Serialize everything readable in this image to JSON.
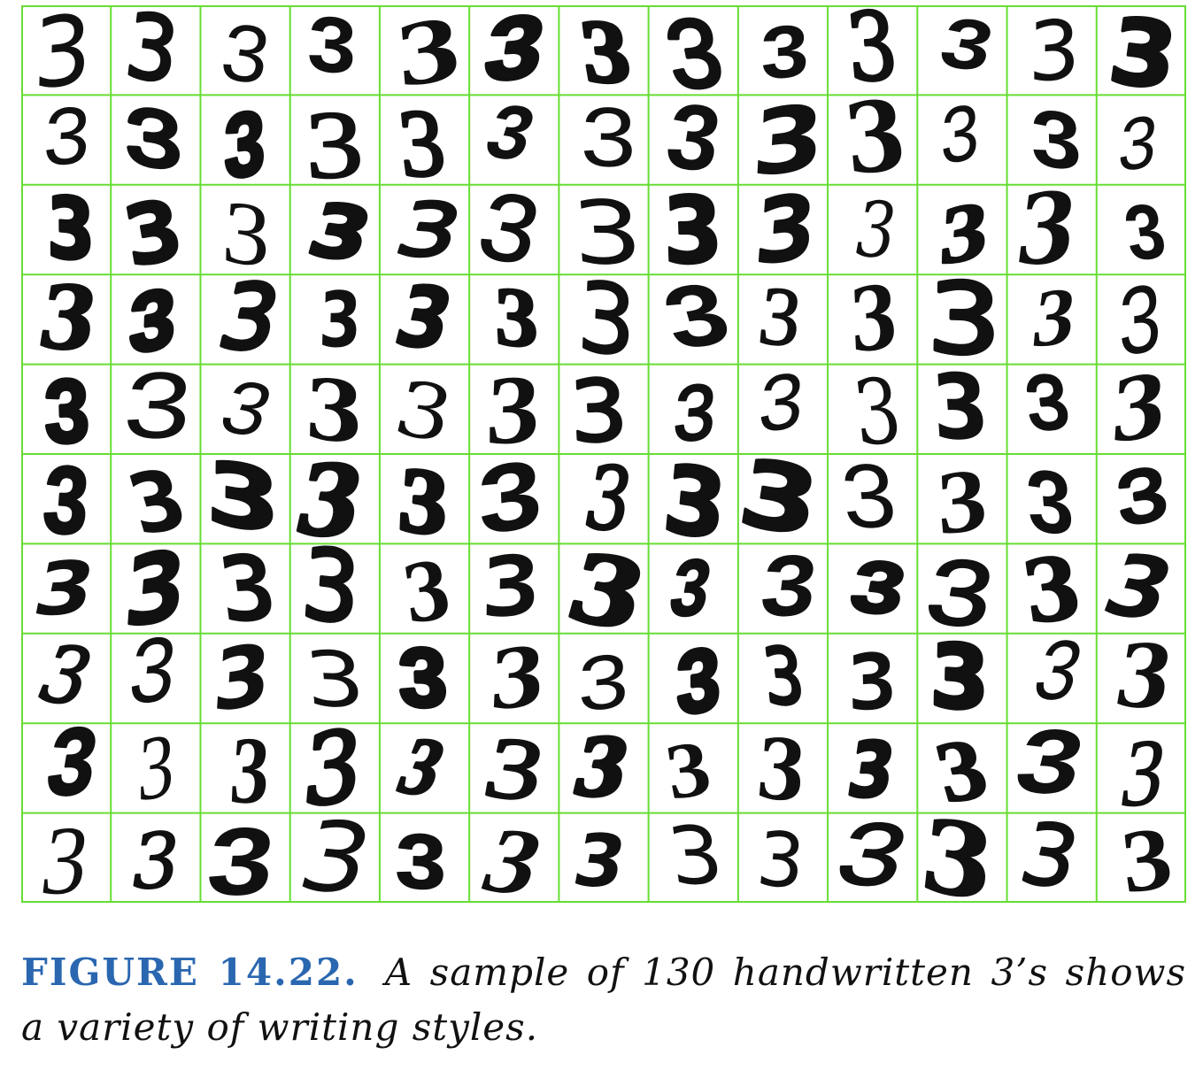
{
  "figure": {
    "rows": 10,
    "columns": 13,
    "digit": "3",
    "grid_color": "#66dd33",
    "ink_color": "#111111",
    "cell_background": "#ffffff",
    "sample_count": 130
  },
  "caption": {
    "label": "FIGURE 14.22.",
    "label_color": "#2a67b0",
    "text": "A sample of 130 handwritten 3’s shows a variety of writing styles."
  }
}
